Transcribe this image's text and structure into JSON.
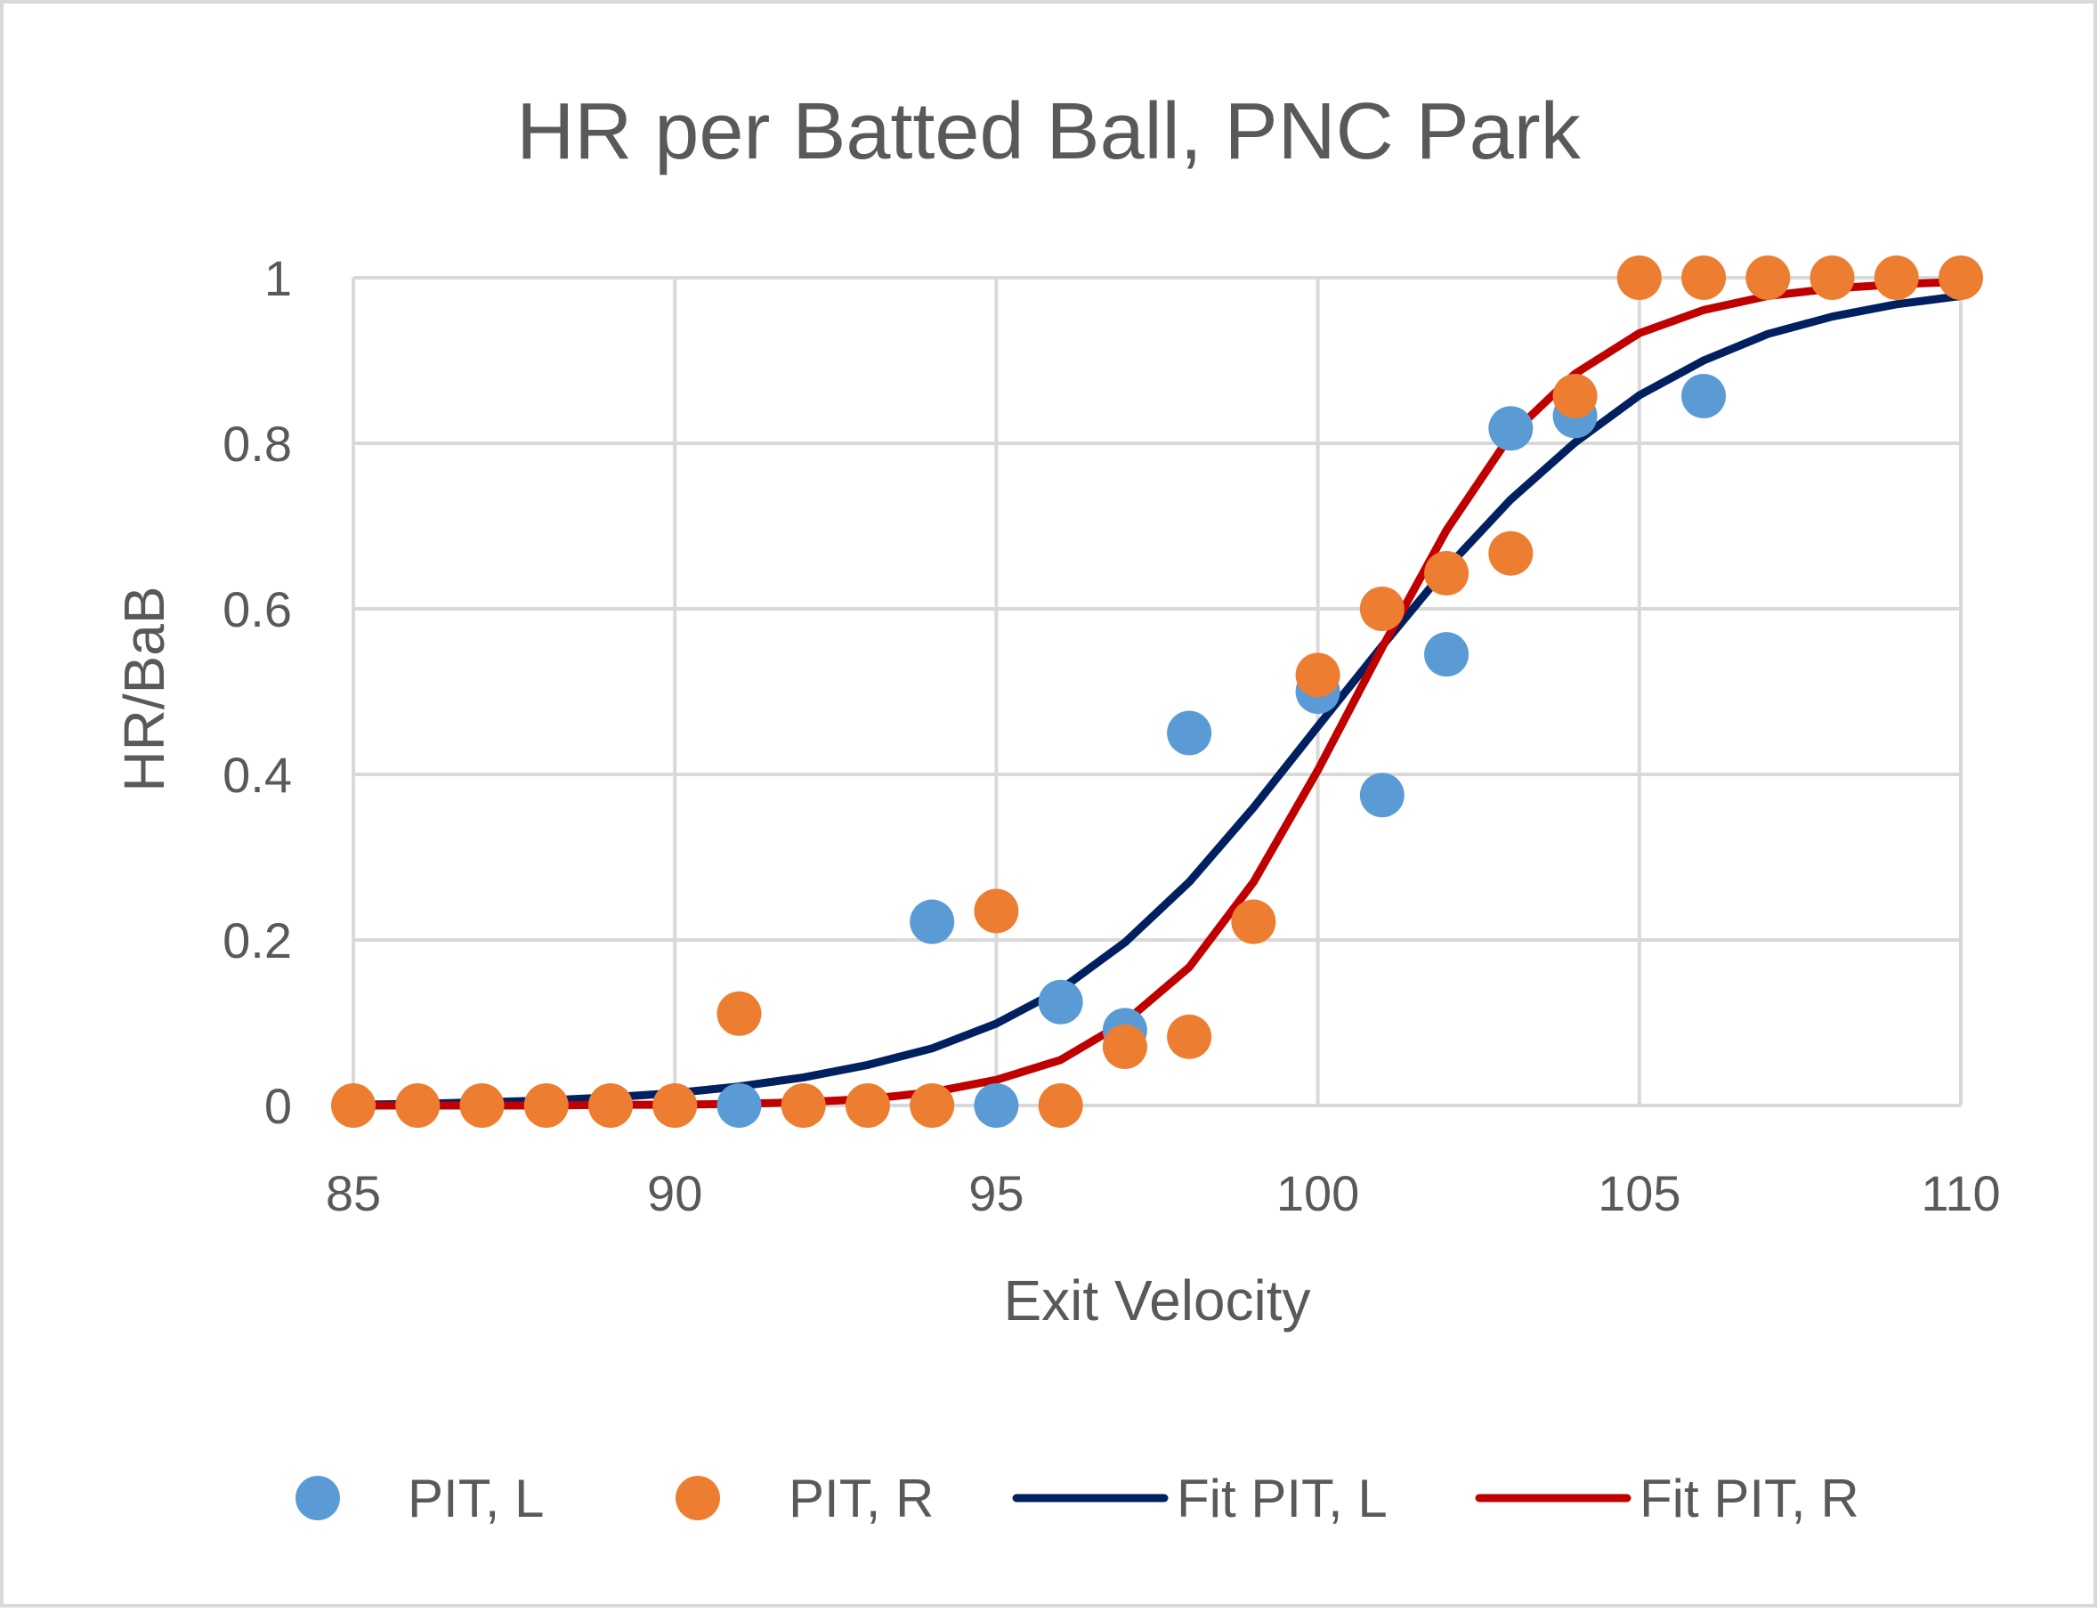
{
  "chart_data": {
    "type": "scatter",
    "title": "HR per Batted Ball, PNC Park",
    "xlabel": "Exit Velocity",
    "ylabel": "HR/BaB",
    "xlim": [
      85,
      110
    ],
    "ylim": [
      0,
      1
    ],
    "x_ticks": [
      "85",
      "90",
      "95",
      "100",
      "105",
      "110"
    ],
    "y_ticks": [
      "0",
      "0.2",
      "0.4",
      "0.6",
      "0.8",
      "1"
    ],
    "grid": true,
    "legend_position": "bottom",
    "series": [
      {
        "name": "PIT, L",
        "kind": "scatter",
        "color": "#5B9BD5",
        "points": [
          [
            91,
            0
          ],
          [
            94,
            0.222
          ],
          [
            95,
            0
          ],
          [
            96,
            0.125
          ],
          [
            97,
            0.091
          ],
          [
            98,
            0.45
          ],
          [
            100,
            0.5
          ],
          [
            101,
            0.375
          ],
          [
            102,
            0.545
          ],
          [
            103,
            0.818
          ],
          [
            104,
            0.833
          ],
          [
            106,
            0.857
          ]
        ]
      },
      {
        "name": "PIT, R",
        "kind": "scatter",
        "color": "#ED7D31",
        "points": [
          [
            85,
            0
          ],
          [
            86,
            0
          ],
          [
            87,
            0
          ],
          [
            88,
            0
          ],
          [
            89,
            0
          ],
          [
            90,
            0
          ],
          [
            92,
            0
          ],
          [
            93,
            0
          ],
          [
            94,
            0
          ],
          [
            91,
            0.111
          ],
          [
            95,
            0.235
          ],
          [
            96,
            0
          ],
          [
            97,
            0.071
          ],
          [
            98,
            0.083
          ],
          [
            99,
            0.222
          ],
          [
            100,
            0.52
          ],
          [
            101,
            0.6
          ],
          [
            102,
            0.643
          ],
          [
            103,
            0.667
          ],
          [
            104,
            0.857
          ],
          [
            105,
            1
          ],
          [
            106,
            1
          ],
          [
            107,
            1
          ],
          [
            108,
            1
          ],
          [
            109,
            1
          ],
          [
            110,
            1
          ]
        ]
      },
      {
        "name": "Fit PIT, L",
        "kind": "line",
        "color": "#002060",
        "points": [
          [
            85,
            0.001
          ],
          [
            86,
            0.002
          ],
          [
            87,
            0.004
          ],
          [
            88,
            0.006
          ],
          [
            89,
            0.01
          ],
          [
            90,
            0.015
          ],
          [
            91,
            0.023
          ],
          [
            92,
            0.034
          ],
          [
            93,
            0.049
          ],
          [
            94,
            0.069
          ],
          [
            95,
            0.099
          ],
          [
            96,
            0.14
          ],
          [
            97,
            0.197
          ],
          [
            98,
            0.27
          ],
          [
            99,
            0.36
          ],
          [
            100,
            0.458
          ],
          [
            101,
            0.555
          ],
          [
            102,
            0.649
          ],
          [
            103,
            0.732
          ],
          [
            104,
            0.801
          ],
          [
            105,
            0.858
          ],
          [
            106,
            0.9
          ],
          [
            107,
            0.932
          ],
          [
            108,
            0.953
          ],
          [
            109,
            0.968
          ],
          [
            110,
            0.978
          ]
        ]
      },
      {
        "name": "Fit PIT, R",
        "kind": "line",
        "color": "#C00000",
        "points": [
          [
            85,
            0
          ],
          [
            86,
            0
          ],
          [
            87,
            0
          ],
          [
            88,
            0
          ],
          [
            89,
            0.001
          ],
          [
            90,
            0.001
          ],
          [
            91,
            0.002
          ],
          [
            92,
            0.004
          ],
          [
            93,
            0.008
          ],
          [
            94,
            0.016
          ],
          [
            95,
            0.031
          ],
          [
            96,
            0.055
          ],
          [
            97,
            0.101
          ],
          [
            98,
            0.167
          ],
          [
            99,
            0.27
          ],
          [
            100,
            0.405
          ],
          [
            101,
            0.553
          ],
          [
            102,
            0.695
          ],
          [
            103,
            0.81
          ],
          [
            104,
            0.884
          ],
          [
            105,
            0.933
          ],
          [
            106,
            0.961
          ],
          [
            107,
            0.978
          ],
          [
            108,
            0.987
          ],
          [
            109,
            0.992
          ],
          [
            110,
            0.995
          ]
        ]
      }
    ]
  }
}
